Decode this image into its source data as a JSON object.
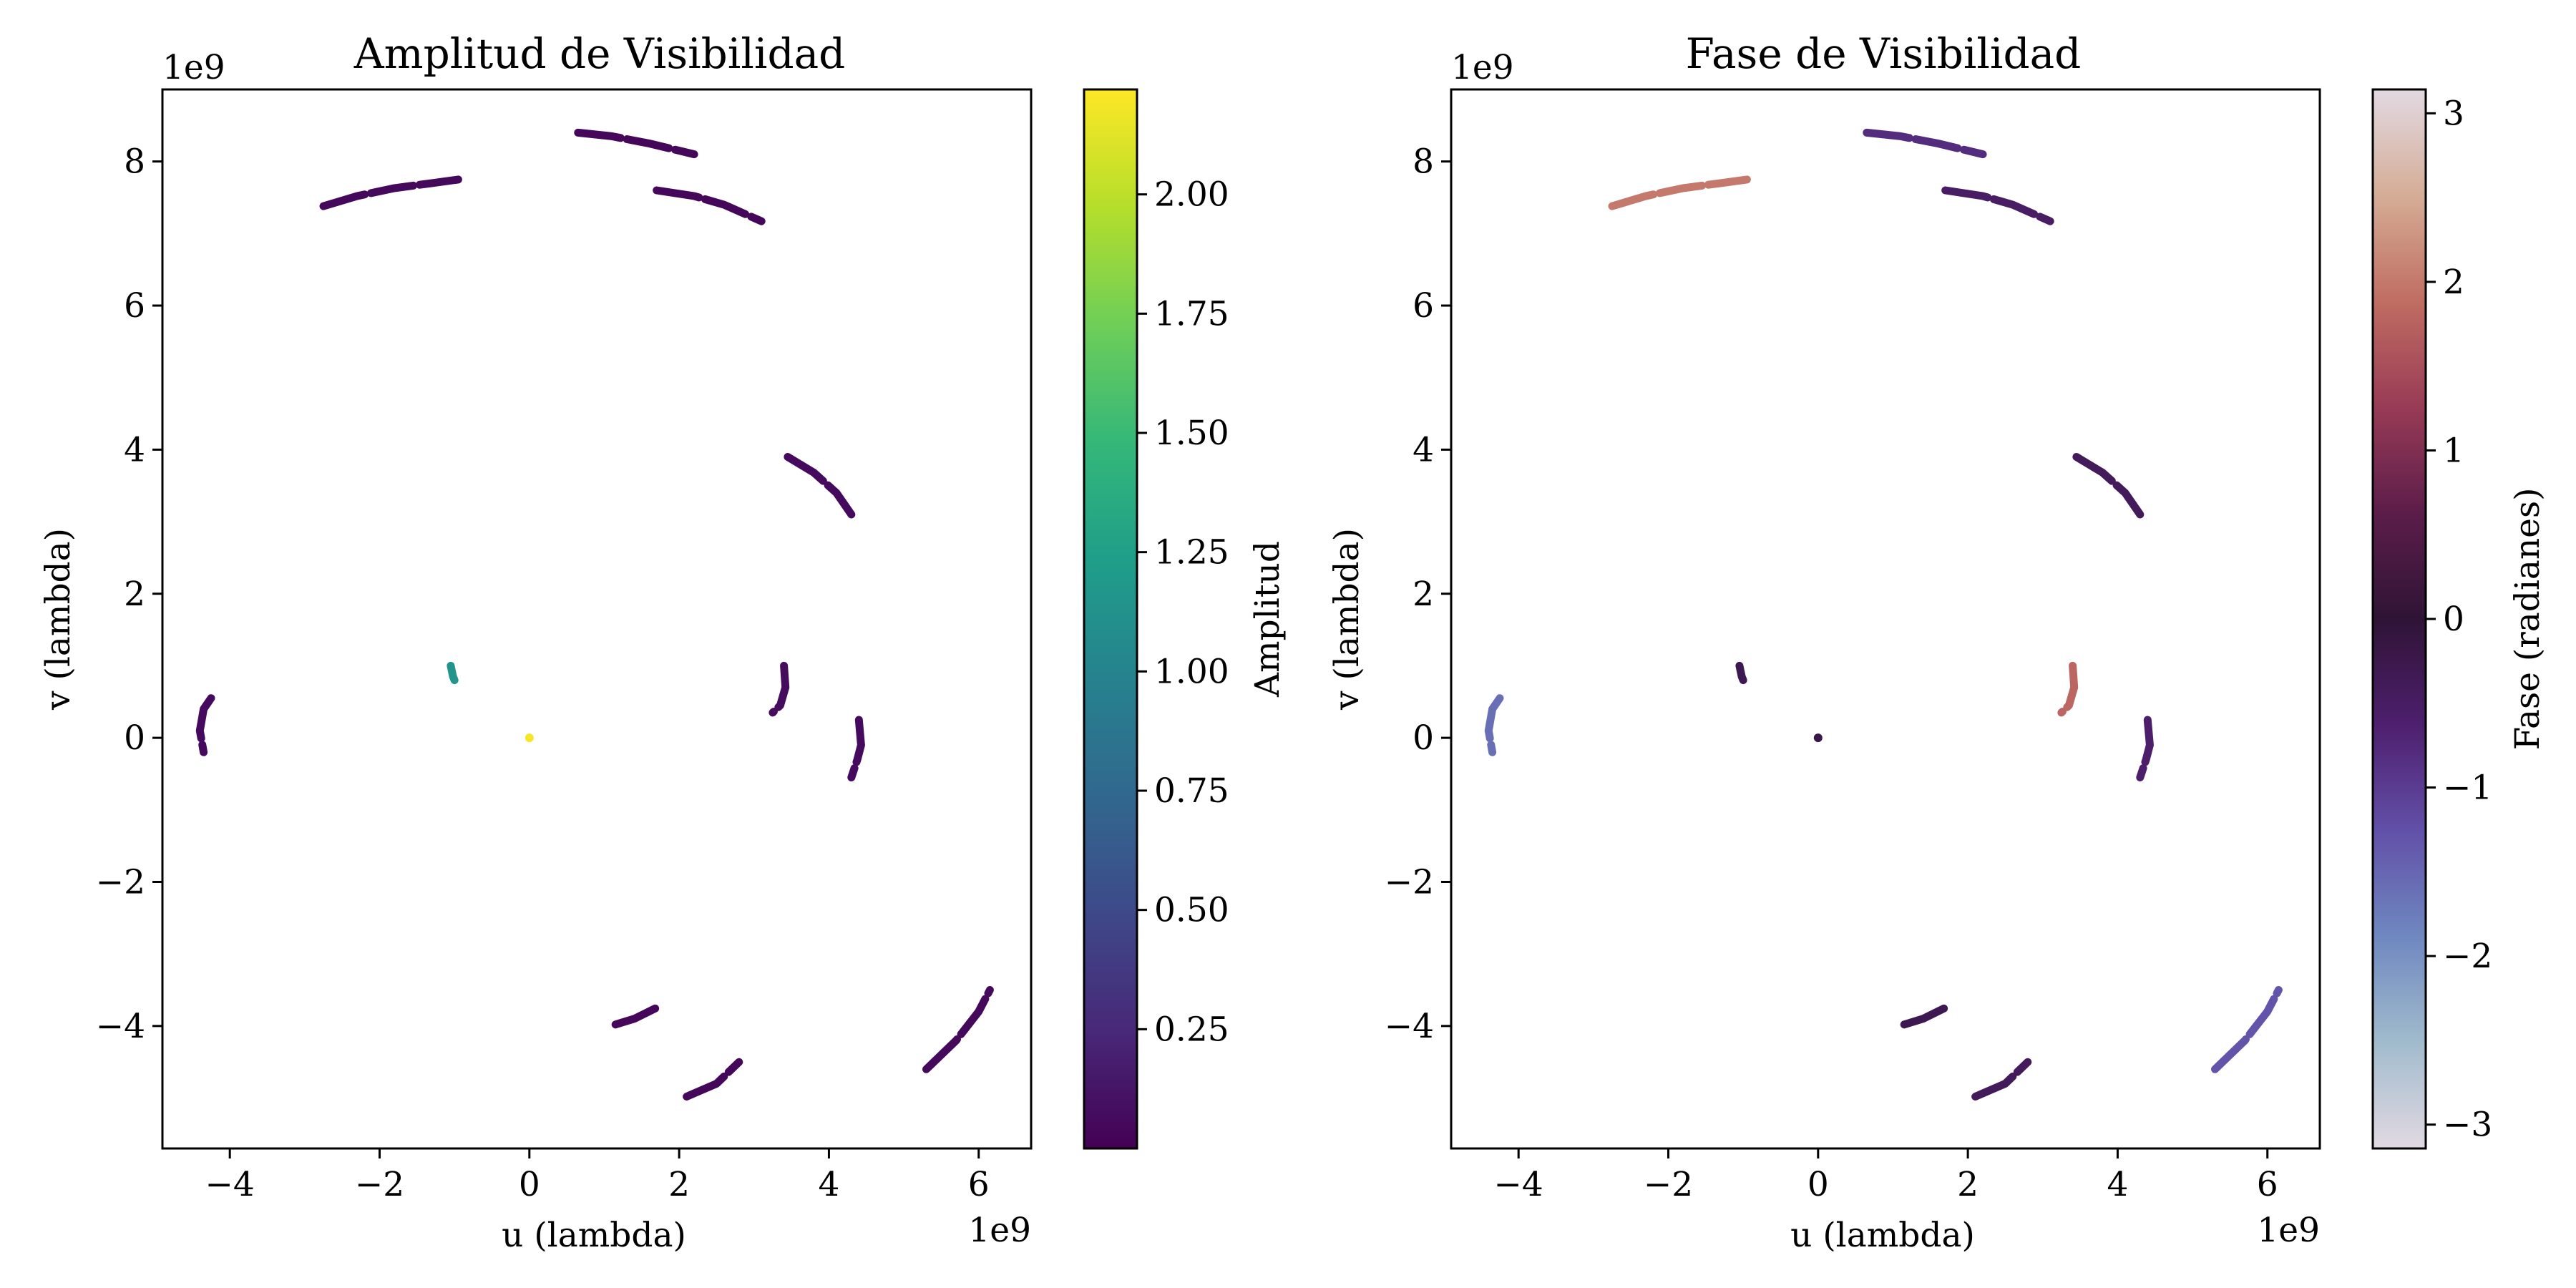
{
  "chart_data": [
    {
      "type": "scatter",
      "title": "Amplitud de Visibilidad",
      "xlabel": "u (lambda)",
      "ylabel": "v (lambda)",
      "x_offset_label": "1e9",
      "y_offset_label": "1e9",
      "xlim": [
        -4.9,
        6.7
      ],
      "ylim": [
        -5.7,
        9.0
      ],
      "xticks": [
        -4,
        -2,
        0,
        2,
        4,
        6
      ],
      "xtick_labels": [
        "−4",
        "−2",
        "0",
        "2",
        "4",
        "6"
      ],
      "yticks": [
        -4,
        -2,
        0,
        2,
        4,
        6,
        8
      ],
      "ytick_labels": [
        "−4",
        "−2",
        "0",
        "2",
        "4",
        "6",
        "8"
      ],
      "grid": false,
      "colorbar": {
        "label": "Amplitud",
        "colormap": "viridis",
        "range": [
          0.0,
          2.22
        ],
        "ticks": [
          0.25,
          0.5,
          0.75,
          1.0,
          1.25,
          1.5,
          1.75,
          2.0
        ],
        "tick_labels": [
          "0.25",
          "0.50",
          "0.75",
          "1.00",
          "1.25",
          "1.50",
          "1.75",
          "2.00"
        ]
      },
      "tracks": [
        {
          "name": "arc-1",
          "points": [
            [
              -2.75,
              7.38
            ],
            [
              -2.3,
              7.52
            ],
            [
              -1.8,
              7.63
            ],
            [
              -1.3,
              7.7
            ],
            [
              -0.95,
              7.75
            ]
          ],
          "value": 0.05
        },
        {
          "name": "arc-2",
          "points": [
            [
              0.65,
              8.4
            ],
            [
              1.1,
              8.35
            ],
            [
              1.6,
              8.25
            ],
            [
              2.2,
              8.1
            ]
          ],
          "value": 0.04
        },
        {
          "name": "arc-3",
          "points": [
            [
              1.7,
              7.6
            ],
            [
              2.2,
              7.52
            ],
            [
              2.6,
              7.4
            ],
            [
              3.1,
              7.17
            ]
          ],
          "value": 0.04
        },
        {
          "name": "arc-4",
          "points": [
            [
              3.45,
              3.9
            ],
            [
              3.8,
              3.68
            ],
            [
              4.1,
              3.4
            ],
            [
              4.3,
              3.1
            ]
          ],
          "value": 0.06
        },
        {
          "name": "arc-5",
          "points": [
            [
              3.4,
              1.0
            ],
            [
              3.42,
              0.7
            ],
            [
              3.35,
              0.45
            ],
            [
              3.25,
              0.35
            ]
          ],
          "value": 0.07
        },
        {
          "name": "arc-6",
          "points": [
            [
              4.4,
              0.25
            ],
            [
              4.43,
              -0.1
            ],
            [
              4.38,
              -0.3
            ],
            [
              4.3,
              -0.55
            ]
          ],
          "value": 0.06
        },
        {
          "name": "arc-7",
          "points": [
            [
              -4.25,
              0.55
            ],
            [
              -4.35,
              0.4
            ],
            [
              -4.4,
              0.1
            ],
            [
              -4.35,
              -0.2
            ]
          ],
          "value": 0.06
        },
        {
          "name": "arc-8",
          "points": [
            [
              -1.05,
              1.0
            ],
            [
              -1.02,
              0.85
            ],
            [
              -1.0,
              0.8
            ]
          ],
          "value": 1.15
        },
        {
          "name": "dot-center",
          "points": [
            [
              0.0,
              0.0
            ]
          ],
          "value": 2.2
        },
        {
          "name": "arc-9",
          "points": [
            [
              1.15,
              -3.98
            ],
            [
              1.4,
              -3.9
            ],
            [
              1.75,
              -3.72
            ]
          ],
          "value": 0.04
        },
        {
          "name": "arc-10",
          "points": [
            [
              2.1,
              -4.98
            ],
            [
              2.5,
              -4.8
            ],
            [
              2.8,
              -4.5
            ]
          ],
          "value": 0.04
        },
        {
          "name": "arc-11",
          "points": [
            [
              5.3,
              -4.6
            ],
            [
              5.7,
              -4.2
            ],
            [
              6.0,
              -3.8
            ],
            [
              6.15,
              -3.5
            ]
          ],
          "value": 0.05
        }
      ]
    },
    {
      "type": "scatter",
      "title": "Fase de Visibilidad",
      "xlabel": "u (lambda)",
      "ylabel": "v (lambda)",
      "x_offset_label": "1e9",
      "y_offset_label": "1e9",
      "xlim": [
        -4.9,
        6.7
      ],
      "ylim": [
        -5.7,
        9.0
      ],
      "xticks": [
        -4,
        -2,
        0,
        2,
        4,
        6
      ],
      "xtick_labels": [
        "−4",
        "−2",
        "0",
        "2",
        "4",
        "6"
      ],
      "yticks": [
        -4,
        -2,
        0,
        2,
        4,
        6,
        8
      ],
      "ytick_labels": [
        "−4",
        "−2",
        "0",
        "2",
        "4",
        "6",
        "8"
      ],
      "grid": false,
      "colorbar": {
        "label": "Fase (radianes)",
        "colormap": "twilight",
        "range": [
          -3.1416,
          3.1416
        ],
        "ticks": [
          -3,
          -2,
          -1,
          0,
          1,
          2,
          3
        ],
        "tick_labels": [
          "−3",
          "−2",
          "−1",
          "0",
          "1",
          "2",
          "3"
        ]
      },
      "tracks": [
        {
          "name": "arc-1",
          "points": [
            [
              -2.75,
              7.38
            ],
            [
              -2.3,
              7.52
            ],
            [
              -1.8,
              7.63
            ],
            [
              -1.3,
              7.7
            ],
            [
              -0.95,
              7.75
            ]
          ],
          "value": 2.0
        },
        {
          "name": "arc-2",
          "points": [
            [
              0.65,
              8.4
            ],
            [
              1.1,
              8.35
            ],
            [
              1.6,
              8.25
            ],
            [
              2.2,
              8.1
            ]
          ],
          "value": -0.8
        },
        {
          "name": "arc-3",
          "points": [
            [
              1.7,
              7.6
            ],
            [
              2.2,
              7.52
            ],
            [
              2.6,
              7.4
            ],
            [
              3.1,
              7.17
            ]
          ],
          "value": -0.5
        },
        {
          "name": "arc-4",
          "points": [
            [
              3.45,
              3.9
            ],
            [
              3.8,
              3.68
            ],
            [
              4.1,
              3.4
            ],
            [
              4.3,
              3.1
            ]
          ],
          "value": -0.4
        },
        {
          "name": "arc-5",
          "points": [
            [
              3.4,
              1.0
            ],
            [
              3.42,
              0.7
            ],
            [
              3.35,
              0.45
            ],
            [
              3.25,
              0.35
            ]
          ],
          "value": 1.8
        },
        {
          "name": "arc-6",
          "points": [
            [
              4.4,
              0.25
            ],
            [
              4.43,
              -0.1
            ],
            [
              4.38,
              -0.3
            ],
            [
              4.3,
              -0.55
            ]
          ],
          "value": -0.6
        },
        {
          "name": "arc-7",
          "points": [
            [
              -4.25,
              0.55
            ],
            [
              -4.35,
              0.4
            ],
            [
              -4.4,
              0.1
            ],
            [
              -4.35,
              -0.2
            ]
          ],
          "value": -1.6
        },
        {
          "name": "arc-8",
          "points": [
            [
              -1.05,
              1.0
            ],
            [
              -1.02,
              0.85
            ],
            [
              -1.0,
              0.8
            ]
          ],
          "value": -0.3
        },
        {
          "name": "dot-center",
          "points": [
            [
              0.0,
              0.0
            ]
          ],
          "value": -0.2
        },
        {
          "name": "arc-9",
          "points": [
            [
              1.15,
              -3.98
            ],
            [
              1.4,
              -3.9
            ],
            [
              1.75,
              -3.72
            ]
          ],
          "value": -0.3
        },
        {
          "name": "arc-10",
          "points": [
            [
              2.1,
              -4.98
            ],
            [
              2.5,
              -4.8
            ],
            [
              2.8,
              -4.5
            ]
          ],
          "value": -0.4
        },
        {
          "name": "arc-11",
          "points": [
            [
              5.3,
              -4.6
            ],
            [
              5.7,
              -4.2
            ],
            [
              6.0,
              -3.8
            ],
            [
              6.15,
              -3.5
            ]
          ],
          "value": -1.3
        }
      ]
    }
  ]
}
